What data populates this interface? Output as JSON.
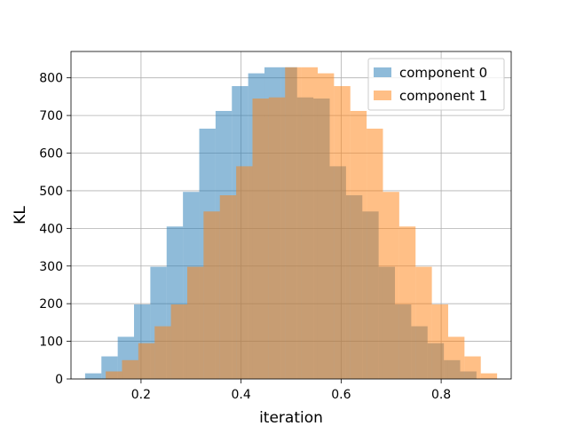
{
  "chart_data": {
    "type": "bar",
    "subtype": "overlapping histogram",
    "title": "",
    "xlabel": "iteration",
    "ylabel": "KL",
    "xlim": [
      0.06,
      0.94
    ],
    "ylim": [
      0,
      870
    ],
    "xticks": [
      0.2,
      0.4,
      0.6,
      0.8
    ],
    "xtick_labels": [
      "0.2",
      "0.4",
      "0.6",
      "0.8"
    ],
    "yticks": [
      0,
      100,
      200,
      300,
      400,
      500,
      600,
      700,
      800
    ],
    "ytick_labels": [
      "0",
      "100",
      "200",
      "300",
      "400",
      "500",
      "600",
      "700",
      "800"
    ],
    "grid": true,
    "legend_position": "top-right",
    "series": [
      {
        "name": "component 0",
        "color": "#1f77b4",
        "opacity": 0.5,
        "bin_edges": [
          0.0882,
          0.1208,
          0.1534,
          0.186,
          0.2186,
          0.2512,
          0.2838,
          0.3164,
          0.349,
          0.3816,
          0.4142,
          0.4468,
          0.4794,
          0.512,
          0.5446,
          0.5772,
          0.6098,
          0.6424,
          0.675,
          0.7076,
          0.7402,
          0.7728,
          0.8054,
          0.838,
          0.8706
        ],
        "values": [
          15,
          60,
          112,
          198,
          298,
          405,
          497,
          665,
          712,
          778,
          812,
          828,
          828,
          748,
          745,
          565,
          488,
          445,
          298,
          198,
          140,
          95,
          50,
          20
        ]
      },
      {
        "name": "component 1",
        "color": "#ff7f0e",
        "opacity": 0.5,
        "bin_edges": [
          0.1294,
          0.162,
          0.1946,
          0.2272,
          0.2598,
          0.2924,
          0.325,
          0.3576,
          0.3902,
          0.4228,
          0.4554,
          0.488,
          0.5206,
          0.5532,
          0.5858,
          0.6184,
          0.651,
          0.6836,
          0.7162,
          0.7488,
          0.7814,
          0.814,
          0.8466,
          0.8792,
          0.9118
        ],
        "values": [
          20,
          50,
          95,
          140,
          198,
          298,
          445,
          488,
          565,
          745,
          748,
          828,
          828,
          812,
          778,
          712,
          665,
          497,
          405,
          298,
          198,
          112,
          60,
          15
        ]
      }
    ]
  }
}
